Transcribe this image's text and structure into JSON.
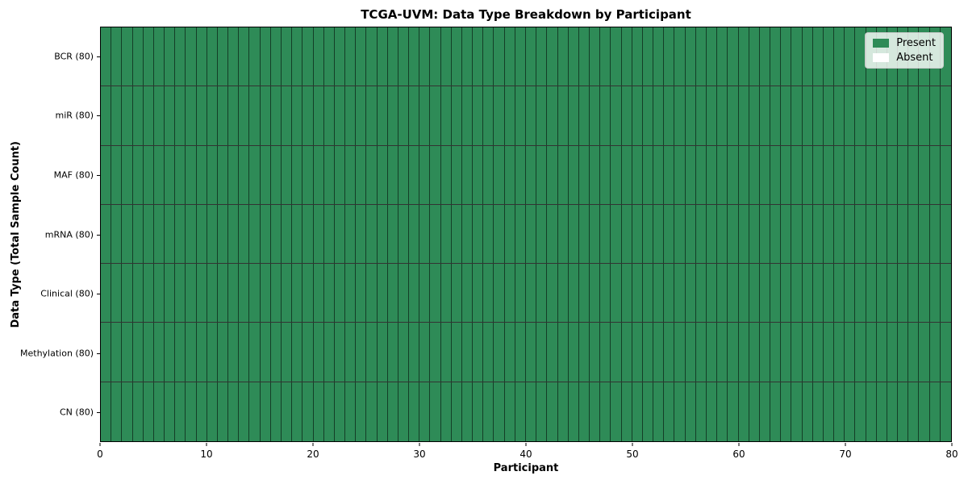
{
  "chart_data": {
    "type": "heatmap",
    "title": "TCGA-UVM: Data Type Breakdown by Participant",
    "xlabel": "Participant",
    "ylabel": "Data Type (Total Sample Count)",
    "xlim": [
      0,
      80
    ],
    "x_ticks": [
      0,
      10,
      20,
      30,
      40,
      50,
      60,
      70,
      80
    ],
    "n_participants": 80,
    "rows": [
      {
        "label": "BCR (80)",
        "data_type": "BCR",
        "total_samples": 80,
        "present_count": 80,
        "absent_count": 0
      },
      {
        "label": "miR (80)",
        "data_type": "miR",
        "total_samples": 80,
        "present_count": 80,
        "absent_count": 0
      },
      {
        "label": "MAF (80)",
        "data_type": "MAF",
        "total_samples": 80,
        "present_count": 80,
        "absent_count": 0
      },
      {
        "label": "mRNA (80)",
        "data_type": "mRNA",
        "total_samples": 80,
        "present_count": 80,
        "absent_count": 0
      },
      {
        "label": "Clinical (80)",
        "data_type": "Clinical",
        "total_samples": 80,
        "present_count": 80,
        "absent_count": 0
      },
      {
        "label": "Methylation (80)",
        "data_type": "Methylation",
        "total_samples": 80,
        "present_count": 80,
        "absent_count": 0
      },
      {
        "label": "CN (80)",
        "data_type": "CN",
        "total_samples": 80,
        "present_count": 80,
        "absent_count": 0
      }
    ],
    "all_cells_state": "present",
    "colors": {
      "present": "#2e8b57",
      "absent": "#ffffff",
      "cell_border": "#1a1a1a",
      "spine": "#000000"
    },
    "legend": {
      "position": "upper-right",
      "entries": [
        {
          "label": "Present",
          "color": "#2e8b57"
        },
        {
          "label": "Absent",
          "color": "#ffffff"
        }
      ]
    },
    "grid": false
  }
}
